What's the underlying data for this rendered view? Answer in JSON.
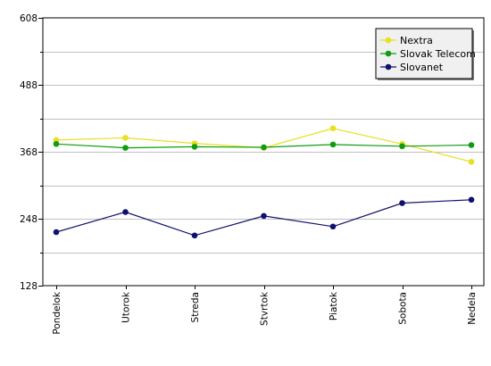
{
  "chart_data": {
    "type": "line",
    "categories": [
      "Pondelok",
      "Utorok",
      "Streda",
      "Stvrtok",
      "Piatok",
      "Sobota",
      "Nedela"
    ],
    "series": [
      {
        "name": "Nextra",
        "color": "#e8e020",
        "values": [
          389,
          393,
          383,
          375,
          410,
          382,
          350
        ]
      },
      {
        "name": "Slovak Telecom",
        "color": "#109b10",
        "values": [
          382,
          375,
          377,
          376,
          381,
          378,
          380
        ]
      },
      {
        "name": "Slovanet",
        "color": "#10106e",
        "values": [
          224,
          260,
          218,
          253,
          234,
          276,
          282
        ]
      }
    ],
    "ylim": [
      128,
      608
    ],
    "yticks": [
      128,
      248,
      368,
      488,
      608
    ],
    "y_minor_step": 60,
    "grid": "horizontal",
    "legend_position": "top-right",
    "title": "",
    "xlabel": "",
    "ylabel": ""
  }
}
